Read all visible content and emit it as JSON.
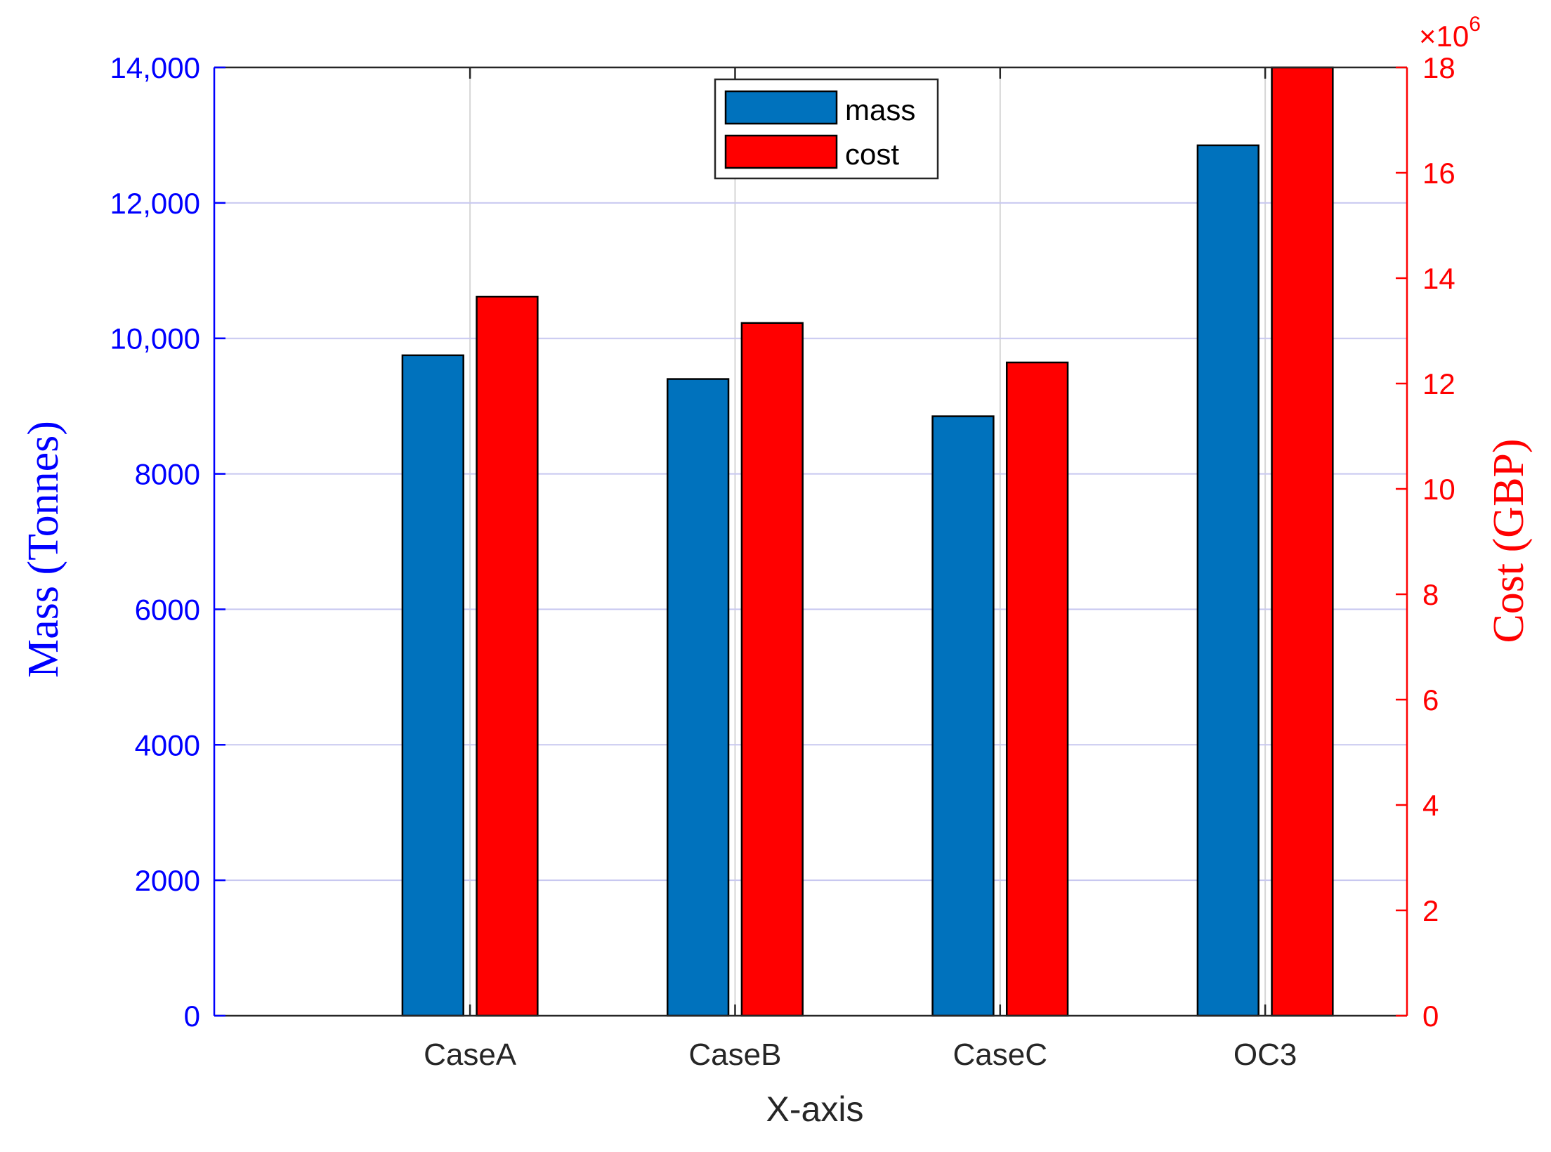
{
  "chart_data": {
    "type": "bar",
    "categories": [
      "CaseA",
      "CaseB",
      "CaseC",
      "OC3"
    ],
    "series": [
      {
        "name": "mass",
        "axis": "left",
        "color": "#0072BD",
        "values": [
          9750,
          9400,
          8850,
          12850
        ]
      },
      {
        "name": "cost",
        "axis": "right",
        "color": "#FF0000",
        "values": [
          13650000,
          13150000,
          12400000,
          18000000
        ]
      }
    ],
    "xlabel": "X-axis",
    "ylabel_left": "Mass (Tonnes)",
    "ylabel_right": "Cost (GBP)",
    "ylim_left": [
      0,
      14000
    ],
    "ylim_right": [
      0,
      18000000
    ],
    "yticks_left": [
      "0",
      "2000",
      "4000",
      "6000",
      "8000",
      "10,000",
      "12,000",
      "14,000"
    ],
    "yticks_right": [
      "0",
      "2",
      "4",
      "6",
      "8",
      "10",
      "12",
      "14",
      "16",
      "18"
    ],
    "right_axis_exponent": {
      "prefix": "×10",
      "power": "6"
    },
    "grid": true,
    "legend_position": "top-center",
    "colors": {
      "left_axis": "#0000FF",
      "right_axis": "#FF0000",
      "grid_h": "#C8C8F0",
      "grid_v": "#D6D6D6"
    }
  }
}
